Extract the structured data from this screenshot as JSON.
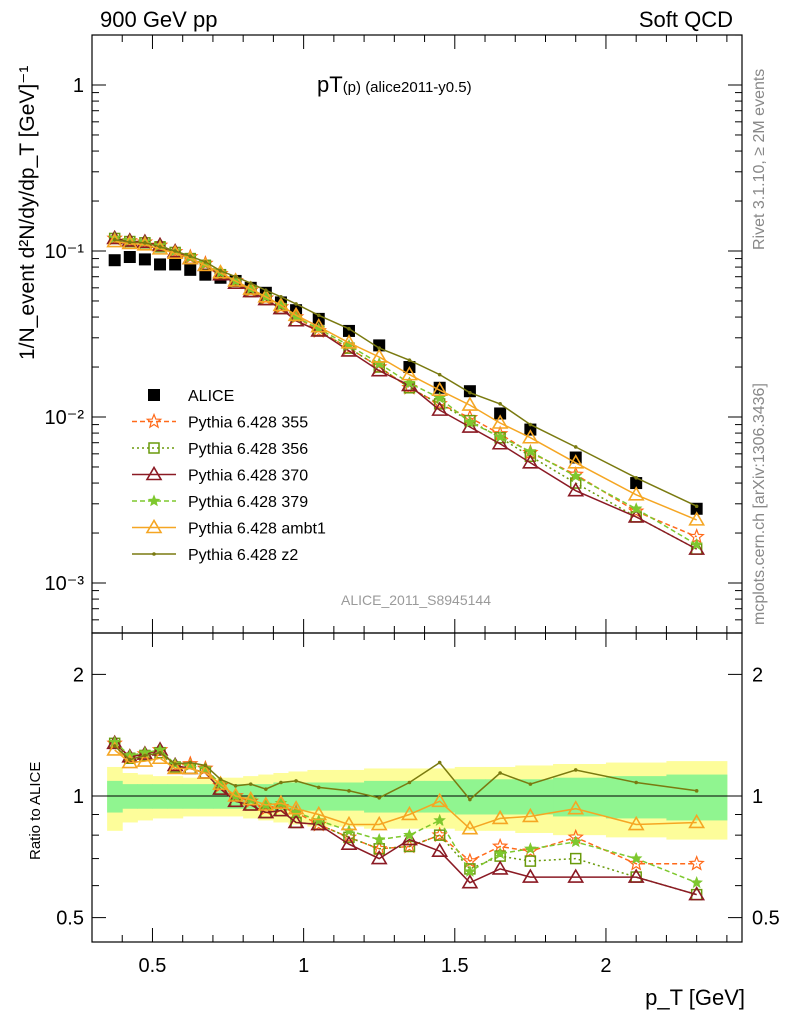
{
  "header": {
    "left": "900 GeV pp",
    "right": "Soft QCD"
  },
  "side_texts": {
    "rivet": "Rivet 3.1.10, ≥ 2M events",
    "mcplots": "mcplots.cern.ch [arXiv:1306.3436]"
  },
  "watermark": "ALICE_2011_S8945144",
  "plot_title": {
    "main": "pT",
    "sub": "(p) (alice2011-y0.5)"
  },
  "y_axis_label": "1/N_event d²N/dy/dp_T [GeV]⁻¹",
  "ratio_axis_label": "Ratio to ALICE",
  "x_axis_label": "p_T [GeV]",
  "colors": {
    "ALICE": "#000000",
    "p355": "#ff6a1a",
    "p356": "#6a9a0c",
    "p370": "#8b1a24",
    "p379": "#7ec82e",
    "ambt1": "#f5a623",
    "z2": "#7a7a10",
    "band_inner": "#90f590",
    "band_outer": "#fdfd9a"
  },
  "chart_data": [
    {
      "type": "scatter",
      "title": "pT(p) (alice2011-y0.5)",
      "xlabel": "p_T [GeV]",
      "ylabel": "1/N_event d²N/dy/dp_T [GeV]⁻¹",
      "xlim": [
        0.3,
        2.45
      ],
      "ylim": [
        0.0004,
        2
      ],
      "yscale": "log",
      "x_ticks": [
        "0.5",
        "1",
        "1.5",
        "2"
      ],
      "y_ticks": [
        "10⁻³",
        "10⁻²",
        "10⁻¹",
        "1"
      ],
      "x": [
        0.375,
        0.425,
        0.475,
        0.525,
        0.575,
        0.625,
        0.675,
        0.725,
        0.775,
        0.825,
        0.875,
        0.925,
        0.975,
        1.05,
        1.15,
        1.25,
        1.35,
        1.45,
        1.55,
        1.65,
        1.75,
        1.9,
        2.1,
        2.3
      ],
      "series": [
        {
          "name": "ALICE",
          "values": [
            0.088,
            0.092,
            0.089,
            0.083,
            0.083,
            0.077,
            0.072,
            0.069,
            0.066,
            0.06,
            0.056,
            0.049,
            0.044,
            0.039,
            0.033,
            0.027,
            0.02,
            0.015,
            0.0143,
            0.0105,
            0.0084,
            0.0057,
            0.004,
            0.0028
          ]
        },
        {
          "name": "Pythia 6.428 355",
          "values": [
            0.119,
            0.115,
            0.113,
            0.108,
            0.099,
            0.092,
            0.084,
            0.073,
            0.066,
            0.058,
            0.052,
            0.046,
            0.04,
            0.033,
            0.026,
            0.02,
            0.015,
            0.012,
            0.0099,
            0.0079,
            0.0061,
            0.0045,
            0.0027,
            0.0019
          ]
        },
        {
          "name": "Pythia 6.428 356",
          "values": [
            0.119,
            0.114,
            0.112,
            0.106,
            0.098,
            0.09,
            0.082,
            0.072,
            0.064,
            0.057,
            0.051,
            0.045,
            0.038,
            0.033,
            0.026,
            0.02,
            0.015,
            0.012,
            0.0095,
            0.0075,
            0.0058,
            0.004,
            0.0025,
            0.0016
          ]
        },
        {
          "name": "Pythia 6.428 370",
          "values": [
            0.119,
            0.115,
            0.113,
            0.108,
            0.099,
            0.09,
            0.082,
            0.072,
            0.064,
            0.057,
            0.051,
            0.045,
            0.038,
            0.033,
            0.025,
            0.019,
            0.0155,
            0.011,
            0.0087,
            0.0069,
            0.0053,
            0.0036,
            0.0025,
            0.0016
          ]
        },
        {
          "name": "Pythia 6.428 379",
          "values": [
            0.12,
            0.116,
            0.114,
            0.108,
            0.1,
            0.092,
            0.084,
            0.074,
            0.066,
            0.059,
            0.053,
            0.047,
            0.04,
            0.034,
            0.027,
            0.021,
            0.016,
            0.013,
            0.0093,
            0.0076,
            0.0062,
            0.0044,
            0.0028,
            0.0017
          ]
        },
        {
          "name": "Pythia 6.428 ambt1",
          "values": [
            0.114,
            0.111,
            0.109,
            0.103,
            0.097,
            0.09,
            0.082,
            0.074,
            0.066,
            0.059,
            0.053,
            0.047,
            0.041,
            0.035,
            0.028,
            0.023,
            0.018,
            0.0145,
            0.0118,
            0.0092,
            0.0075,
            0.0053,
            0.0034,
            0.0024
          ]
        },
        {
          "name": "Pythia 6.428 z2",
          "values": [
            0.117,
            0.113,
            0.112,
            0.106,
            0.1,
            0.093,
            0.086,
            0.076,
            0.07,
            0.064,
            0.058,
            0.053,
            0.048,
            0.041,
            0.034,
            0.026,
            0.022,
            0.018,
            0.014,
            0.012,
            0.009,
            0.0066,
            0.0043,
            0.0029
          ]
        }
      ]
    },
    {
      "type": "line",
      "ylabel": "Ratio to ALICE",
      "xlabel": "p_T [GeV]",
      "xlim": [
        0.3,
        2.45
      ],
      "ylim": [
        0.4,
        2.5
      ],
      "yscale": "log",
      "x_ticks": [
        "0.5",
        "1",
        "1.5",
        "2"
      ],
      "y_ticks": [
        "0.5",
        "1",
        "2"
      ],
      "x": [
        0.375,
        0.425,
        0.475,
        0.525,
        0.575,
        0.625,
        0.675,
        0.725,
        0.775,
        0.825,
        0.875,
        0.925,
        0.975,
        1.05,
        1.15,
        1.25,
        1.35,
        1.45,
        1.55,
        1.65,
        1.75,
        1.9,
        2.1,
        2.3
      ],
      "band_inner": [
        0.09,
        0.07,
        0.07,
        0.07,
        0.07,
        0.07,
        0.07,
        0.07,
        0.07,
        0.07,
        0.07,
        0.08,
        0.08,
        0.08,
        0.08,
        0.09,
        0.09,
        0.09,
        0.1,
        0.1,
        0.1,
        0.11,
        0.12,
        0.13
      ],
      "band_outer": [
        0.18,
        0.14,
        0.13,
        0.12,
        0.12,
        0.11,
        0.11,
        0.11,
        0.11,
        0.12,
        0.13,
        0.14,
        0.15,
        0.16,
        0.16,
        0.17,
        0.17,
        0.17,
        0.18,
        0.18,
        0.19,
        0.2,
        0.21,
        0.22
      ],
      "series": [
        {
          "name": "Pythia 6.428 355",
          "values": [
            1.35,
            1.25,
            1.27,
            1.3,
            1.19,
            1.2,
            1.17,
            1.06,
            1.0,
            0.97,
            0.93,
            0.94,
            0.91,
            0.85,
            0.79,
            0.74,
            0.75,
            0.8,
            0.69,
            0.75,
            0.73,
            0.79,
            0.68,
            0.68
          ]
        },
        {
          "name": "Pythia 6.428 356",
          "values": [
            1.35,
            1.24,
            1.26,
            1.28,
            1.18,
            1.17,
            1.14,
            1.04,
            0.97,
            0.95,
            0.91,
            0.92,
            0.86,
            0.85,
            0.79,
            0.74,
            0.75,
            0.8,
            0.66,
            0.71,
            0.69,
            0.7,
            0.63,
            0.57
          ]
        },
        {
          "name": "Pythia 6.428 370",
          "values": [
            1.35,
            1.25,
            1.27,
            1.3,
            1.19,
            1.17,
            1.14,
            1.04,
            0.97,
            0.95,
            0.91,
            0.92,
            0.86,
            0.85,
            0.76,
            0.7,
            0.78,
            0.73,
            0.61,
            0.66,
            0.63,
            0.63,
            0.63,
            0.57
          ]
        },
        {
          "name": "Pythia 6.428 379",
          "values": [
            1.36,
            1.26,
            1.28,
            1.3,
            1.2,
            1.19,
            1.17,
            1.07,
            1.0,
            0.98,
            0.95,
            0.96,
            0.91,
            0.87,
            0.82,
            0.78,
            0.8,
            0.87,
            0.65,
            0.72,
            0.74,
            0.77,
            0.7,
            0.61
          ]
        },
        {
          "name": "Pythia 6.428 ambt1",
          "values": [
            1.3,
            1.21,
            1.22,
            1.24,
            1.17,
            1.17,
            1.14,
            1.07,
            1.0,
            0.98,
            0.95,
            0.96,
            0.93,
            0.9,
            0.85,
            0.85,
            0.9,
            0.97,
            0.83,
            0.88,
            0.89,
            0.93,
            0.85,
            0.86
          ]
        },
        {
          "name": "Pythia 6.428 z2",
          "values": [
            1.33,
            1.23,
            1.26,
            1.28,
            1.2,
            1.21,
            1.19,
            1.1,
            1.06,
            1.07,
            1.04,
            1.08,
            1.09,
            1.05,
            1.03,
            0.99,
            1.08,
            1.21,
            0.98,
            1.14,
            1.07,
            1.16,
            1.08,
            1.03
          ]
        }
      ]
    }
  ]
}
